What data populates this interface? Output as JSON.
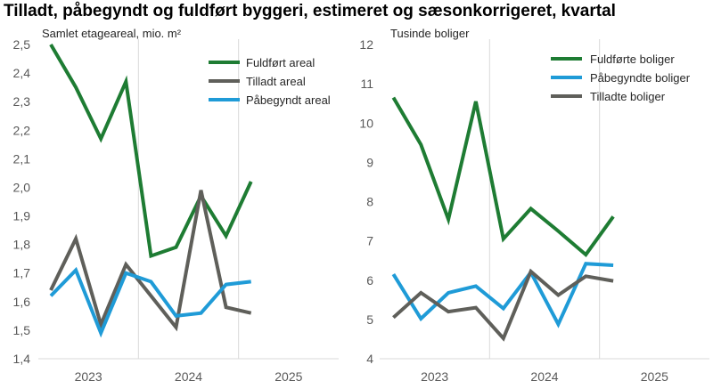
{
  "title": "Tilladt, påbegyndt og fuldført byggeri, estimeret og sæsonkorrigeret, kvartal",
  "colors": {
    "green": "#1e7c33",
    "gray": "#5f5f5a",
    "blue": "#1f9bd7",
    "grid": "#d9d9d9"
  },
  "chart_data": [
    {
      "type": "line",
      "ylabel": "Samlet etageareal, mio. m²",
      "ylim": [
        1.4,
        2.5
      ],
      "yticks": [
        "1,4",
        "1,5",
        "1,6",
        "1,7",
        "1,8",
        "1,9",
        "2,0",
        "2,1",
        "2,2",
        "2,3",
        "2,4",
        "2,5"
      ],
      "year_labels": [
        "2023",
        "2024",
        "2025"
      ],
      "quarters_count": 12,
      "legend_position": "top-right",
      "series": [
        {
          "name": "Fuldført areal",
          "color": "green",
          "values": [
            2.5,
            2.35,
            2.17,
            2.37,
            1.76,
            1.79,
            1.97,
            1.83,
            2.02
          ]
        },
        {
          "name": "Tilladt areal",
          "color": "gray",
          "values": [
            1.64,
            1.82,
            1.52,
            1.73,
            1.62,
            1.51,
            1.99,
            1.58,
            1.56
          ]
        },
        {
          "name": "Påbegyndt areal",
          "color": "blue",
          "values": [
            1.62,
            1.71,
            1.49,
            1.7,
            1.67,
            1.55,
            1.56,
            1.66,
            1.67
          ]
        }
      ]
    },
    {
      "type": "line",
      "ylabel": "Tusinde boliger",
      "ylim": [
        4,
        12
      ],
      "yticks": [
        "4",
        "5",
        "6",
        "7",
        "8",
        "9",
        "10",
        "11",
        "12"
      ],
      "year_labels": [
        "2023",
        "2024",
        "2025"
      ],
      "quarters_count": 12,
      "legend_position": "top-right",
      "series": [
        {
          "name": "Fuldførte boliger",
          "color": "green",
          "values": [
            10.65,
            9.45,
            7.55,
            10.55,
            7.05,
            7.82,
            7.25,
            6.65,
            7.62
          ]
        },
        {
          "name": "Påbegyndte boliger",
          "color": "blue",
          "values": [
            6.15,
            5.02,
            5.68,
            5.85,
            5.28,
            6.2,
            4.88,
            6.42,
            6.38
          ]
        },
        {
          "name": "Tilladte boliger",
          "color": "gray",
          "values": [
            5.05,
            5.68,
            5.2,
            5.3,
            4.52,
            6.22,
            5.62,
            6.1,
            5.98
          ]
        }
      ]
    }
  ]
}
